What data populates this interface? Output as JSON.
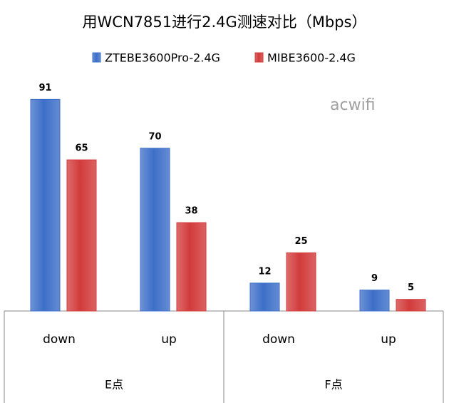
{
  "chart_data": {
    "type": "bar",
    "title": "用WCN7851进行2.4G测速对比（Mbps）",
    "watermark": "acwifi",
    "groups": [
      {
        "name": "E点",
        "categories": [
          "down",
          "up"
        ]
      },
      {
        "name": "F点",
        "categories": [
          "down",
          "up"
        ]
      }
    ],
    "series": [
      {
        "name": "ZTEBE3600Pro-2.4G",
        "color": "#3d6fc8",
        "values": [
          91,
          70,
          12,
          9
        ]
      },
      {
        "name": "MIBE3600-2.4G",
        "color": "#d23b3b",
        "values": [
          65,
          38,
          25,
          5
        ]
      }
    ],
    "ylim": [
      0,
      100
    ]
  }
}
